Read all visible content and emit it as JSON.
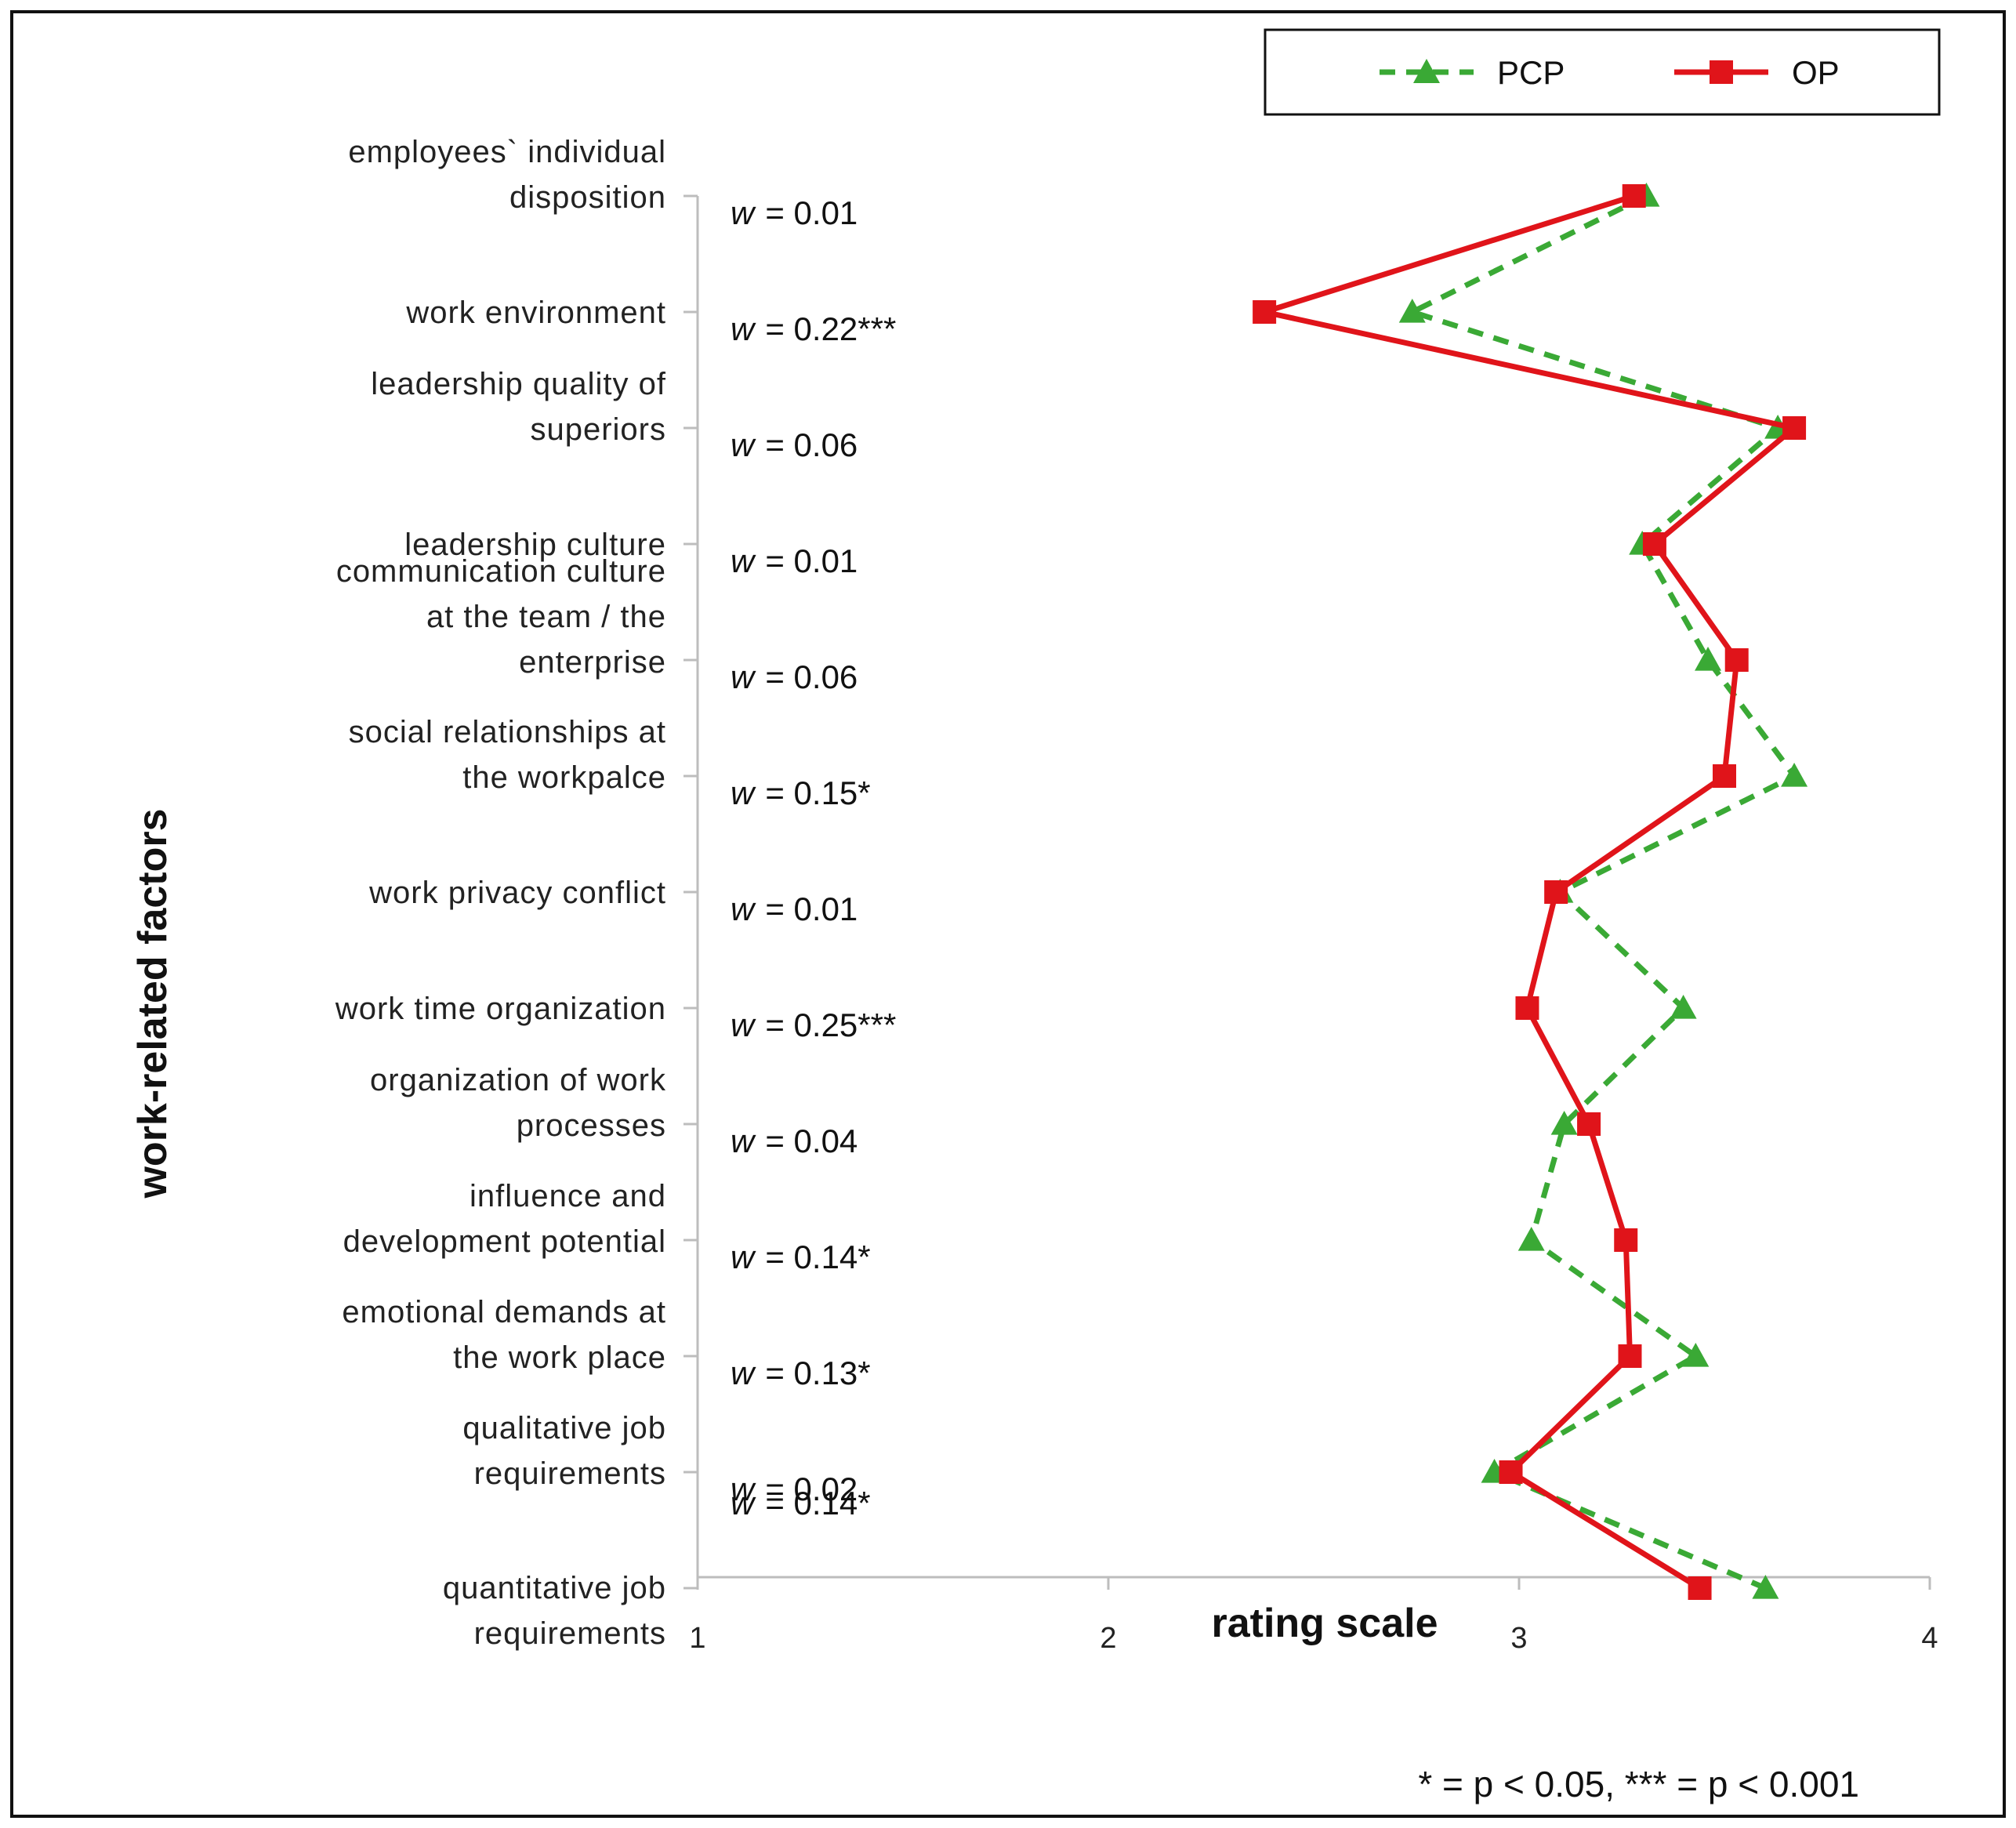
{
  "chart_data": {
    "type": "line",
    "orientation": "horizontal-profile",
    "categories": [
      [
        "employees` individual",
        "disposition"
      ],
      [
        "work environment"
      ],
      [
        "leadership quality of",
        "superiors"
      ],
      [
        "leadership culture"
      ],
      [
        "communication culture",
        "at the team / the",
        "enterprise"
      ],
      [
        "social relationships at",
        "the workpalce"
      ],
      [
        "work privacy conflict"
      ],
      [
        "work time organization"
      ],
      [
        "organization of work",
        "processes"
      ],
      [
        "influence and",
        "development potential"
      ],
      [
        "emotional demands at",
        "the work place"
      ],
      [
        "qualitative job",
        "requirements"
      ],
      [
        "quantitative job",
        "requirements"
      ]
    ],
    "w_prefix": "w",
    "w_values": [
      "= 0.01",
      "= 0.22***",
      "= 0.06",
      "= 0.01",
      "= 0.06",
      "= 0.15*",
      "= 0.01",
      "= 0.25***",
      "= 0.04",
      "= 0.14*",
      "= 0.13*",
      "= 0.02",
      "= 0.14*"
    ],
    "series": [
      {
        "name": "PCP",
        "color": "#3aa935",
        "style": "dashed",
        "marker": "triangle",
        "values": [
          3.31,
          2.74,
          3.63,
          3.3,
          3.46,
          3.67,
          3.1,
          3.4,
          3.11,
          3.03,
          3.43,
          2.94,
          3.6
        ]
      },
      {
        "name": "OP",
        "color": "#e0141a",
        "style": "solid",
        "marker": "square",
        "values": [
          3.28,
          2.38,
          3.67,
          3.33,
          3.53,
          3.5,
          3.09,
          3.02,
          3.17,
          3.26,
          3.27,
          2.98,
          3.44
        ]
      }
    ],
    "xlim": [
      1,
      4
    ],
    "xticks": [
      "1",
      "2",
      "3",
      "4"
    ],
    "xlabel": "rating scale",
    "ylabel": "work-related factors",
    "legend_position": "top-right",
    "footnote": "* = p < 0.05,  *** = p < 0.001"
  }
}
